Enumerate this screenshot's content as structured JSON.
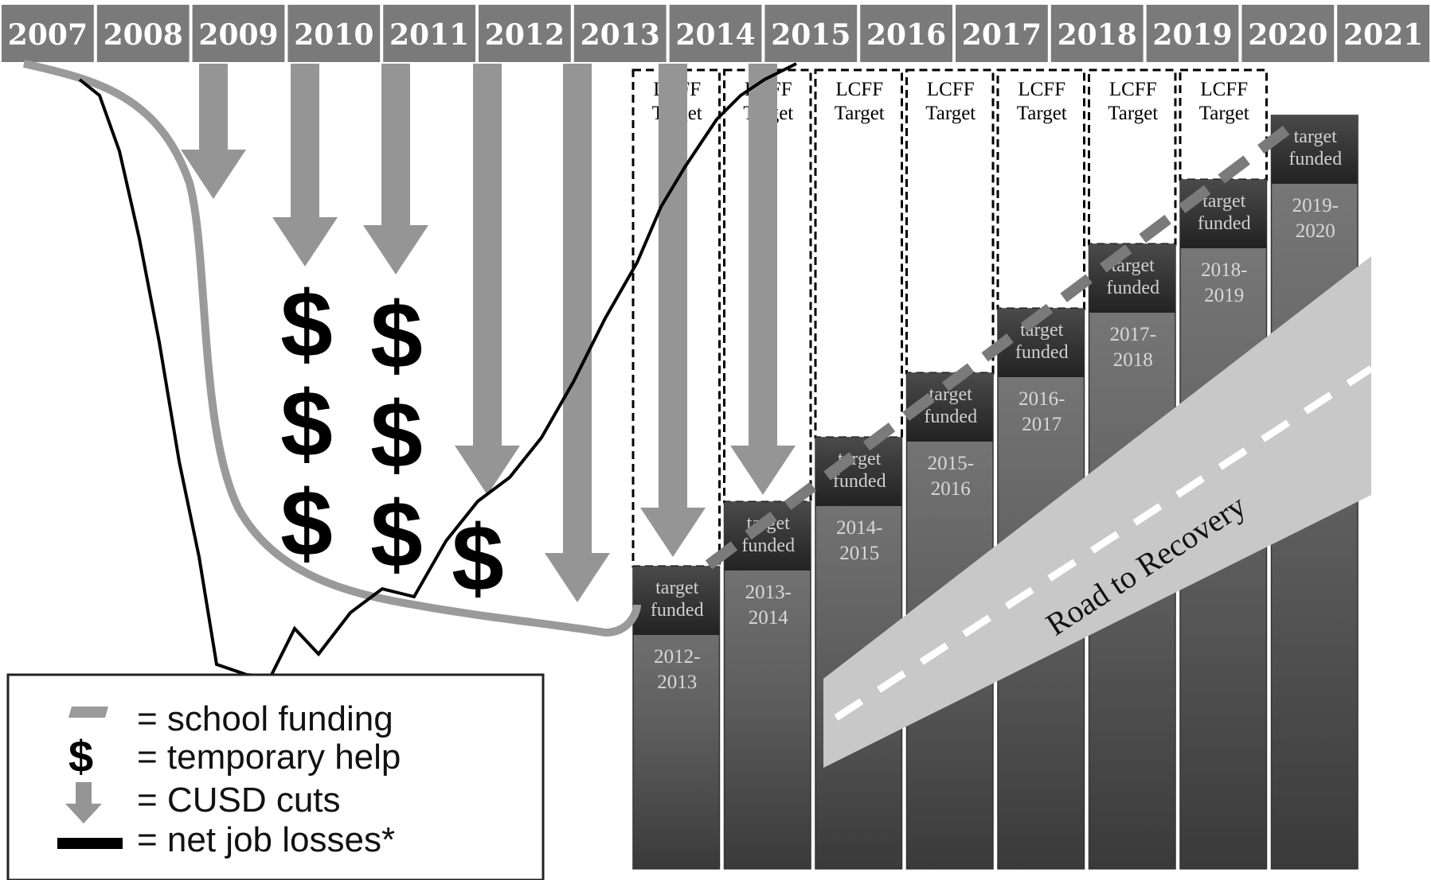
{
  "years": [
    "2007",
    "2008",
    "2009",
    "2010",
    "2011",
    "2012",
    "2013",
    "2014",
    "2015",
    "2016",
    "2017",
    "2018",
    "2019",
    "2020",
    "2021"
  ],
  "columns": [
    {
      "span": "2012-\n2013",
      "level": 0
    },
    {
      "span": "2013-\n2014",
      "level": 1
    },
    {
      "span": "2014-\n2015",
      "level": 2
    },
    {
      "span": "2015-\n2016",
      "level": 3
    },
    {
      "span": "2016-\n2017",
      "level": 4
    },
    {
      "span": "2017-\n2018",
      "level": 5
    },
    {
      "span": "2018-\n2019",
      "level": 6
    },
    {
      "span": "2019-\n2020",
      "level": 7
    }
  ],
  "lcff_target_label": "LCFF\nTarget",
  "target_funded_label": "target\nfunded",
  "road_label": "Road to Recovery",
  "dollar_symbol": "$",
  "dollar_stacks": [
    3,
    3,
    1
  ],
  "legend": {
    "school_funding": "= school funding",
    "temporary_help": "= temporary help",
    "cusd_cuts": "= CUSD cuts",
    "net_job_losses": "= net job losses*"
  },
  "colors": {
    "year_bar": "#7a7a7a",
    "arrow": "#959595",
    "column": "#666666",
    "target_box": "#333333",
    "funding_line": "#9a9a9a",
    "job_line": "#000000",
    "road": "#c8c8c8"
  }
}
